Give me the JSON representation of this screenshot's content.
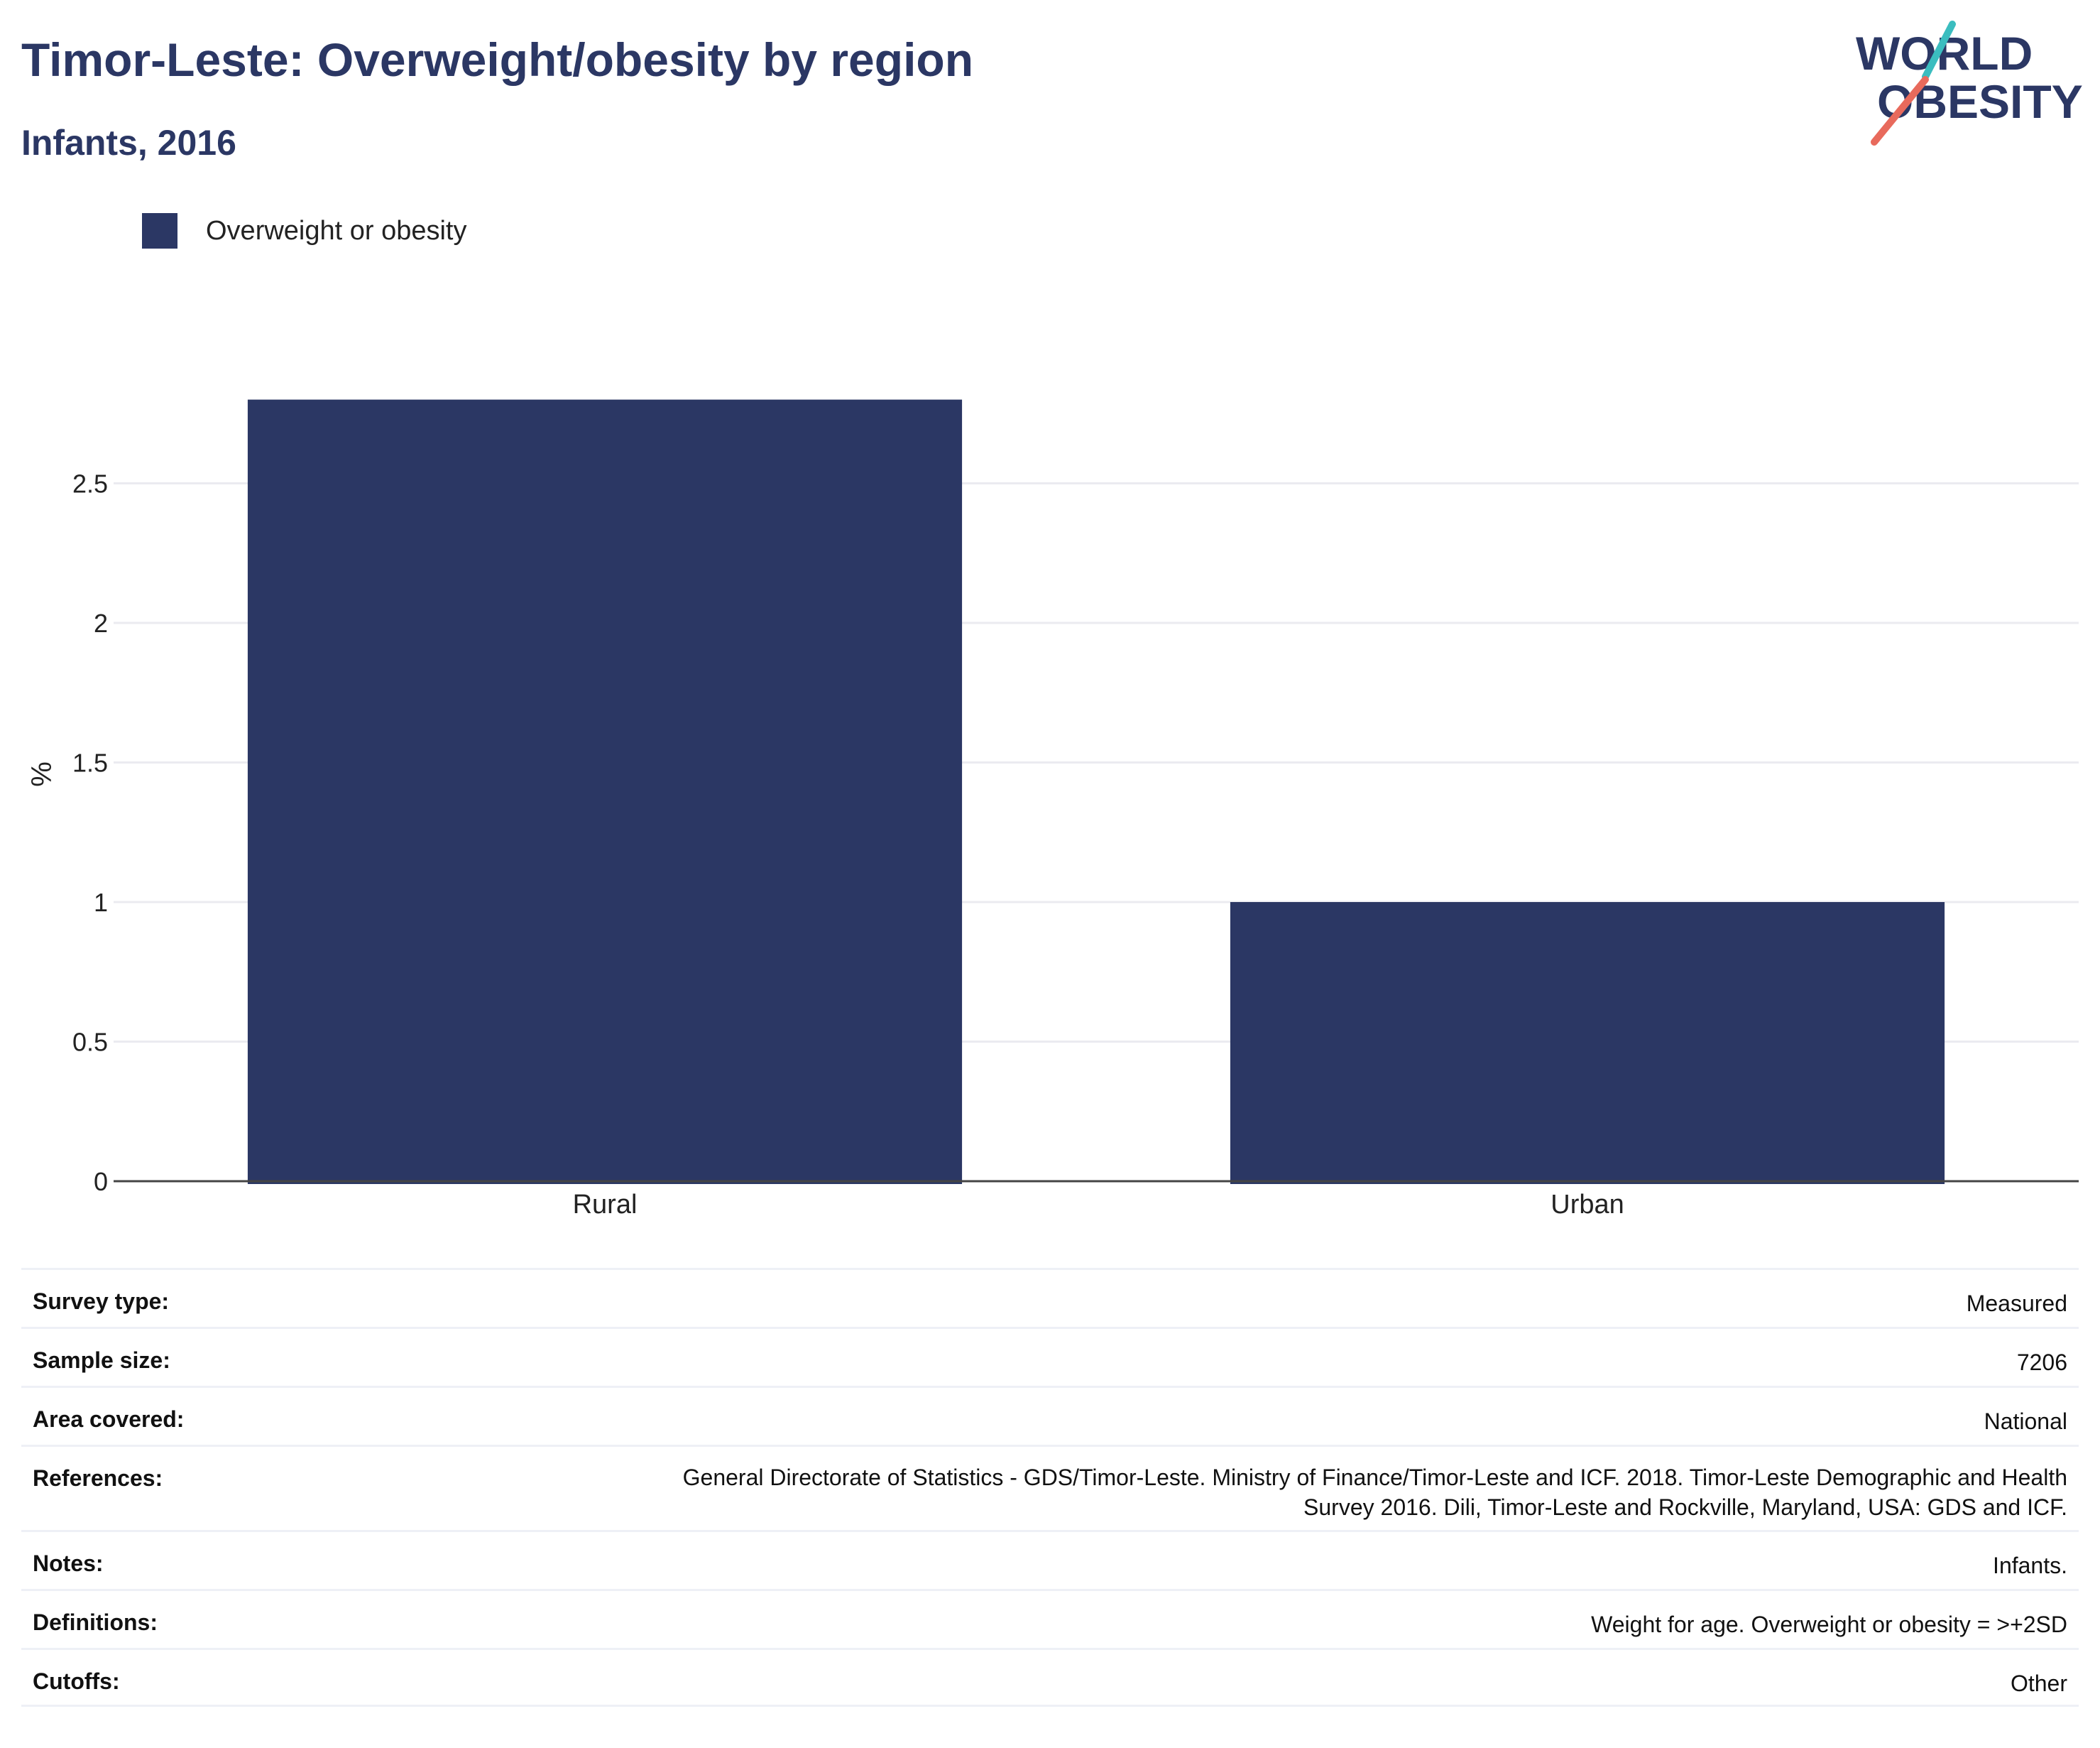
{
  "header": {
    "title": "Timor-Leste: Overweight/obesity by region",
    "subtitle": "Infants, 2016"
  },
  "logo": {
    "line1": "WORLD",
    "line2": "OBESITY",
    "icon": "world-obesity-logo"
  },
  "colors": {
    "bar": "#2b3764",
    "title": "#2b3764",
    "grid": "#ebebf0",
    "logo_teal": "#3bbdbf",
    "logo_coral": "#e86a5c"
  },
  "chart_data": {
    "type": "bar",
    "categories": [
      "Rural",
      "Urban"
    ],
    "series": [
      {
        "name": "Overweight or obesity",
        "values": [
          2.8,
          1.0
        ]
      }
    ],
    "ylabel": "%",
    "xlabel": "",
    "ylim": [
      0,
      3.0
    ],
    "yticks": [
      0,
      0.5,
      1,
      1.5,
      2,
      2.5
    ],
    "ytick_labels": [
      "0",
      "0.5",
      "1",
      "1.5",
      "2",
      "2.5"
    ],
    "grid": true,
    "legend_position": "top-left"
  },
  "info": [
    {
      "label": "Survey type:",
      "value": "Measured"
    },
    {
      "label": "Sample size:",
      "value": "7206"
    },
    {
      "label": "Area covered:",
      "value": "National"
    },
    {
      "label": "References:",
      "value": "General Directorate of Statistics - GDS/Timor-Leste. Ministry of Finance/Timor-Leste and ICF. 2018. Timor-Leste Demographic and Health Survey 2016. Dili, Timor-Leste and Rockville, Maryland, USA: GDS and ICF."
    },
    {
      "label": "Notes:",
      "value": "Infants."
    },
    {
      "label": "Definitions:",
      "value": "Weight for age. Overweight or obesity = >+2SD"
    },
    {
      "label": "Cutoffs:",
      "value": "Other"
    }
  ]
}
